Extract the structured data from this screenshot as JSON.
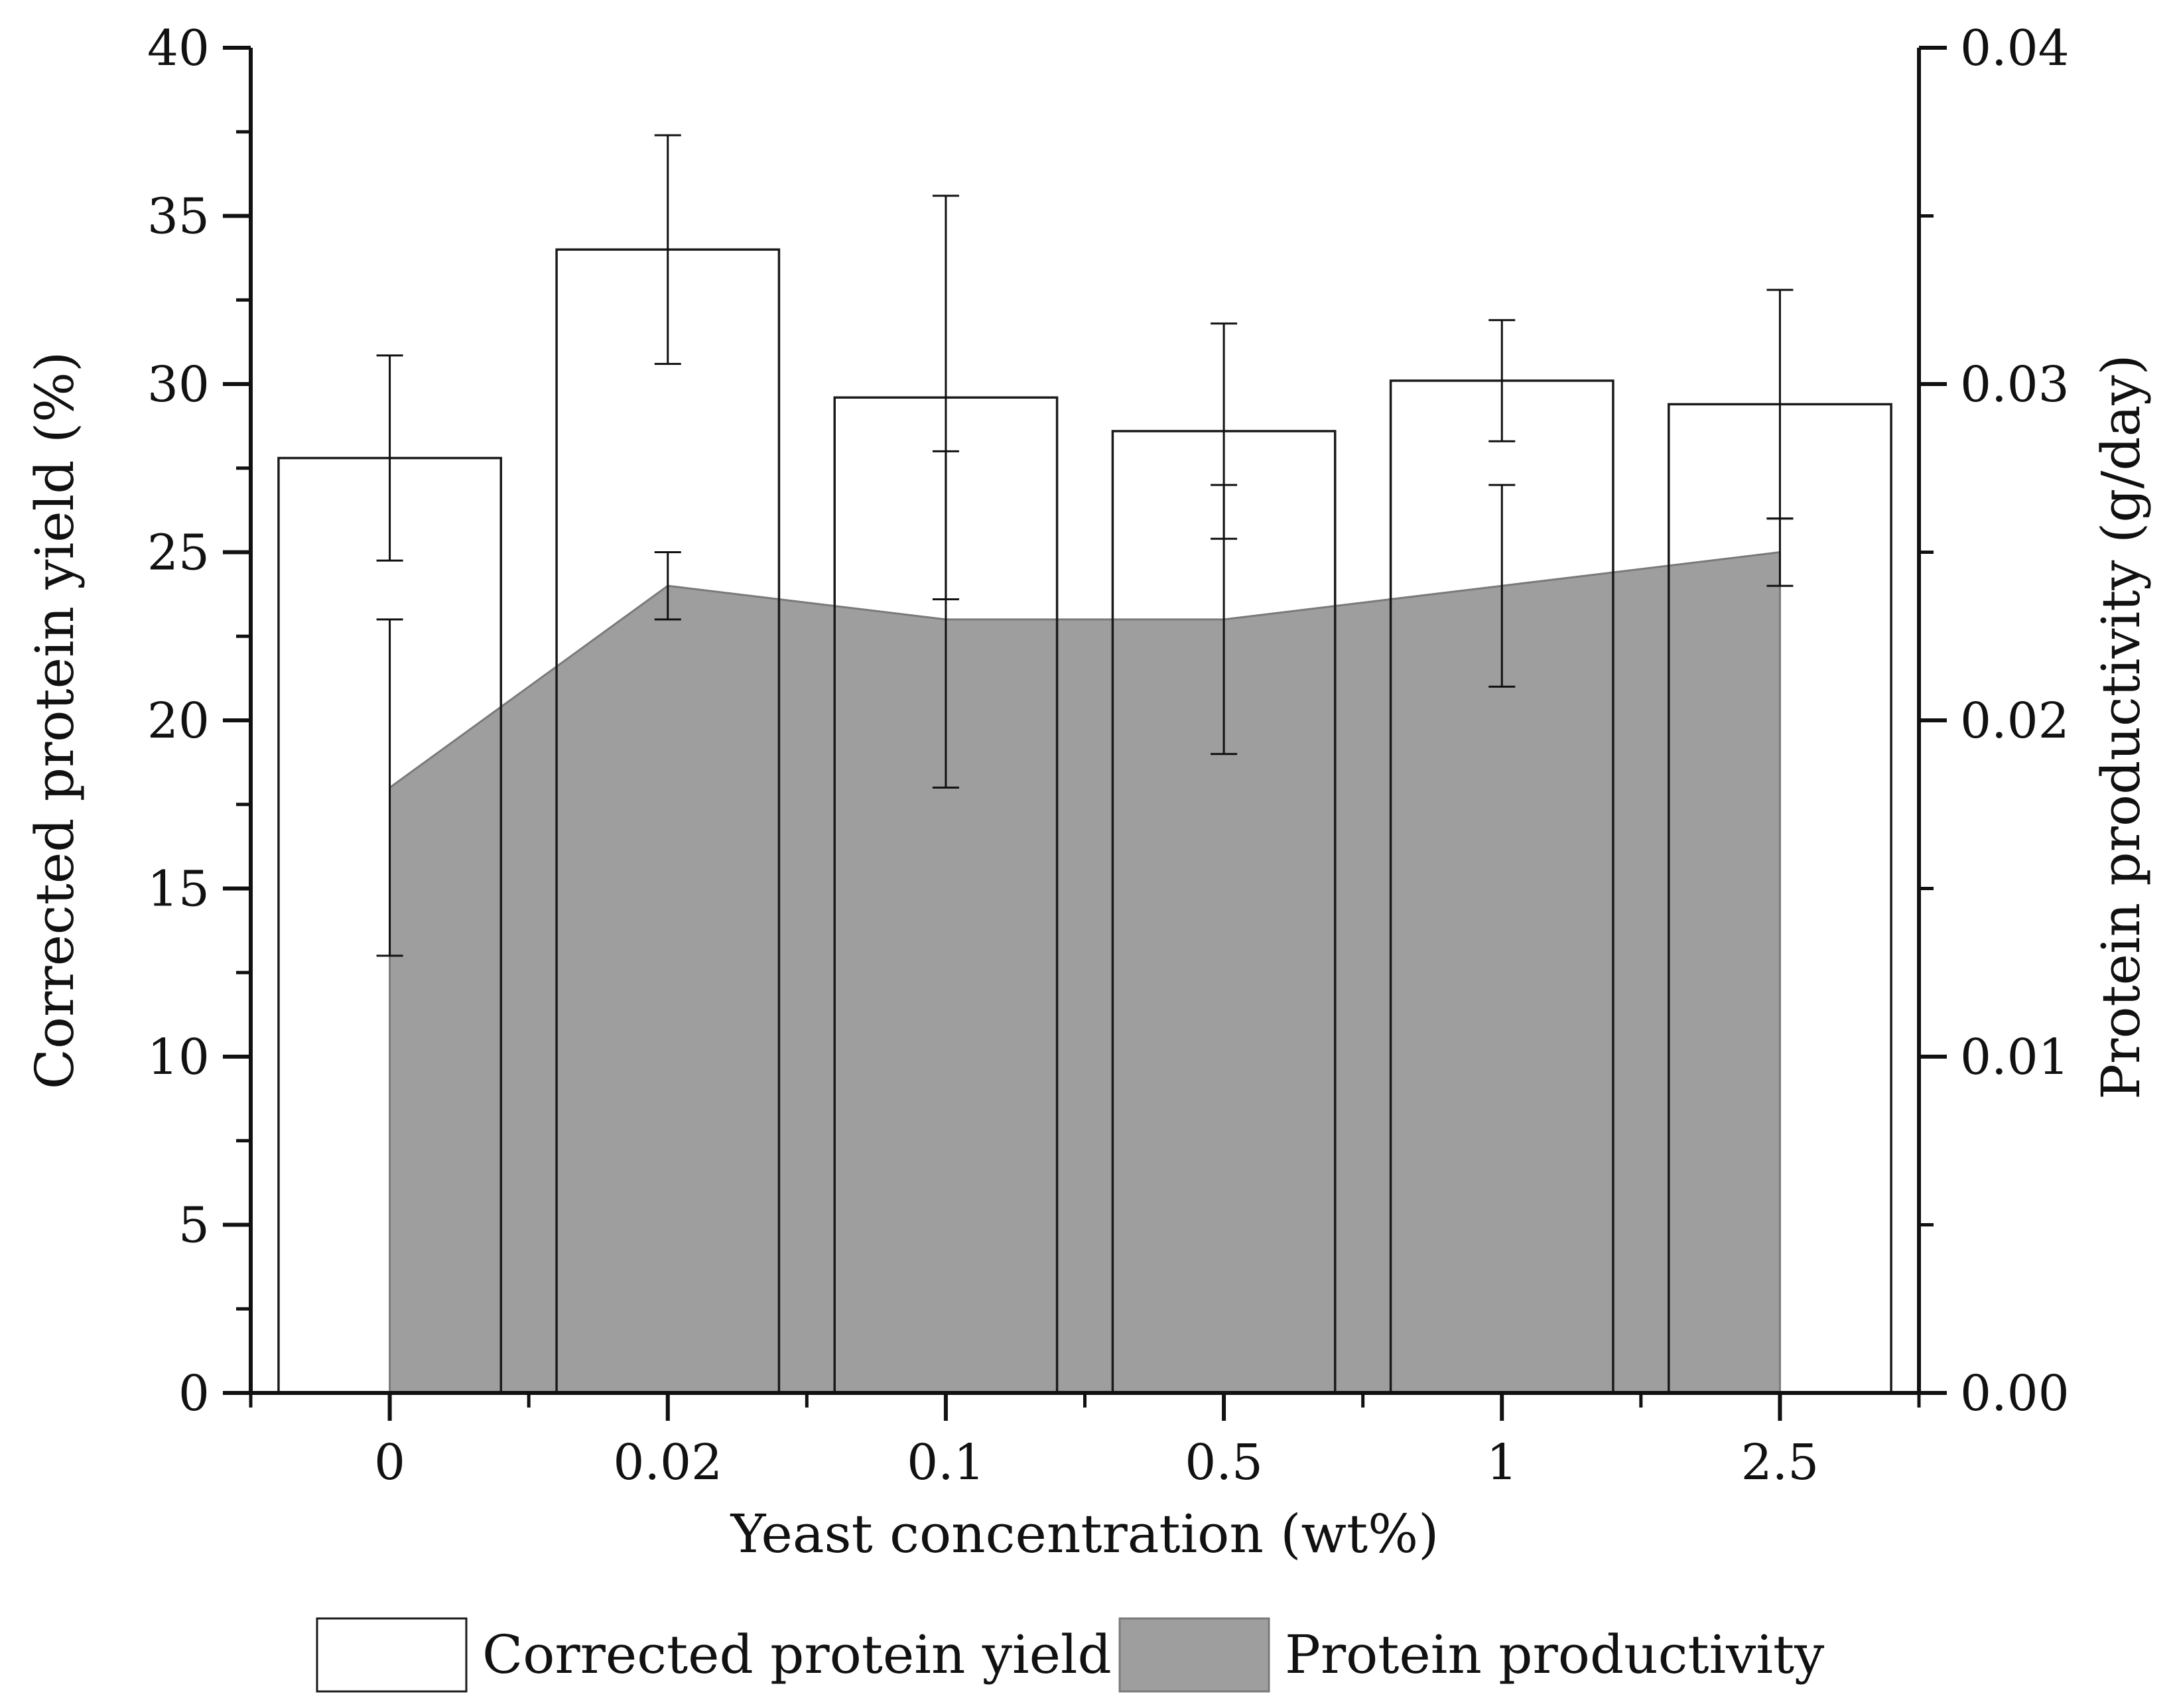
{
  "chart_data": {
    "type": "bar",
    "title": "",
    "xlabel": "Yeast concentration (wt%)",
    "ylabel": "Corrected protein yield (%)",
    "ylabel_right": "Protein productivity (g/day)",
    "categories": [
      "0",
      "0.02",
      "0.1",
      "0.5",
      "1",
      "2.5"
    ],
    "ylim": [
      0,
      40
    ],
    "ylim_right": [
      0,
      0.04
    ],
    "yticks": [
      "0",
      "5",
      "10",
      "15",
      "20",
      "25",
      "30",
      "35",
      "40"
    ],
    "yticks_right": [
      "0.00",
      "0.01",
      "0.02",
      "0.03",
      "0.04"
    ],
    "series": [
      {
        "name": "Corrected protein yield",
        "kind": "bar",
        "axis": "left",
        "values": [
          27.8,
          34.0,
          29.6,
          28.6,
          30.1,
          29.4
        ],
        "errors": [
          3.05,
          3.4,
          6.0,
          3.2,
          1.8,
          3.4
        ],
        "color": "#ffffff",
        "edge": "#1a1a1a"
      },
      {
        "name": "Protein productivity",
        "kind": "area",
        "axis": "right",
        "values": [
          0.018,
          0.024,
          0.023,
          0.023,
          0.024,
          0.025
        ],
        "errors": [
          0.005,
          0.001,
          0.005,
          0.004,
          0.003,
          0.001
        ],
        "color": "#9e9e9e"
      }
    ],
    "legend": [
      "Corrected protein yield",
      "Protein productivity"
    ],
    "legend_position": "bottom-center",
    "grid": false
  }
}
